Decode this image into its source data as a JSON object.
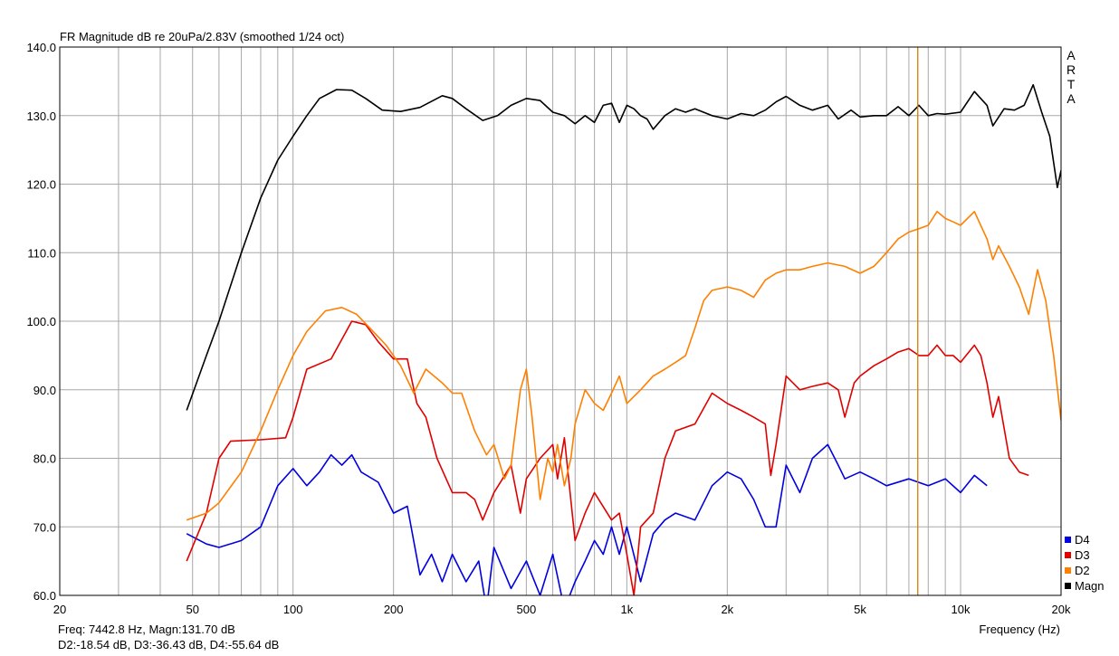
{
  "chart_data": {
    "type": "line",
    "title": "FR Magnitude dB re 20uPa/2.83V (smoothed 1/24 oct)",
    "xlabel": "Frequency (Hz)",
    "ylabel": "",
    "x_scale": "log",
    "xlim": [
      20,
      20000
    ],
    "ylim": [
      60,
      140
    ],
    "grid": true,
    "legend_position": "bottom-right",
    "x_tick_labels": [
      {
        "value": 20,
        "label": "20"
      },
      {
        "value": 50,
        "label": "50"
      },
      {
        "value": 100,
        "label": "100"
      },
      {
        "value": 200,
        "label": "200"
      },
      {
        "value": 500,
        "label": "500"
      },
      {
        "value": 1000,
        "label": "1k"
      },
      {
        "value": 2000,
        "label": "2k"
      },
      {
        "value": 5000,
        "label": "5k"
      },
      {
        "value": 10000,
        "label": "10k"
      },
      {
        "value": 20000,
        "label": "20k"
      }
    ],
    "y_ticks": [
      60,
      70,
      80,
      90,
      100,
      110,
      120,
      130,
      140
    ],
    "y_tick_labels": [
      "60.0",
      "70.0",
      "80.0",
      "90.0",
      "100.0",
      "110.0",
      "120.0",
      "130.0",
      "140.0"
    ],
    "cursor_frequency": 7442.8,
    "side_label": [
      "A",
      "R",
      "T",
      "A"
    ],
    "series": [
      {
        "name": "Magn",
        "color": "#000000",
        "points": [
          [
            48,
            87
          ],
          [
            55,
            95
          ],
          [
            60,
            100
          ],
          [
            70,
            110
          ],
          [
            80,
            118
          ],
          [
            90,
            123.5
          ],
          [
            100,
            127
          ],
          [
            110,
            130
          ],
          [
            120,
            132.5
          ],
          [
            135,
            133.8
          ],
          [
            150,
            133.7
          ],
          [
            165,
            132.5
          ],
          [
            185,
            130.8
          ],
          [
            210,
            130.6
          ],
          [
            240,
            131.2
          ],
          [
            280,
            132.9
          ],
          [
            300,
            132.5
          ],
          [
            330,
            131
          ],
          [
            370,
            129.3
          ],
          [
            410,
            130
          ],
          [
            450,
            131.5
          ],
          [
            500,
            132.5
          ],
          [
            550,
            132.2
          ],
          [
            600,
            130.5
          ],
          [
            650,
            130
          ],
          [
            700,
            128.8
          ],
          [
            750,
            130
          ],
          [
            800,
            129
          ],
          [
            850,
            131.5
          ],
          [
            900,
            131.8
          ],
          [
            950,
            129
          ],
          [
            1000,
            131.5
          ],
          [
            1050,
            131
          ],
          [
            1100,
            130
          ],
          [
            1150,
            129.5
          ],
          [
            1200,
            128
          ],
          [
            1300,
            130
          ],
          [
            1400,
            131
          ],
          [
            1500,
            130.5
          ],
          [
            1600,
            131
          ],
          [
            1800,
            130
          ],
          [
            2000,
            129.5
          ],
          [
            2200,
            130.3
          ],
          [
            2400,
            130
          ],
          [
            2600,
            130.8
          ],
          [
            2800,
            132
          ],
          [
            3000,
            132.8
          ],
          [
            3300,
            131.5
          ],
          [
            3600,
            130.8
          ],
          [
            4000,
            131.5
          ],
          [
            4300,
            129.5
          ],
          [
            4700,
            130.8
          ],
          [
            5000,
            129.8
          ],
          [
            5500,
            130
          ],
          [
            6000,
            130
          ],
          [
            6500,
            131.3
          ],
          [
            7000,
            130
          ],
          [
            7500,
            131.5
          ],
          [
            8000,
            130
          ],
          [
            8500,
            130.3
          ],
          [
            9000,
            130.2
          ],
          [
            10000,
            130.5
          ],
          [
            11000,
            133.5
          ],
          [
            12000,
            131.5
          ],
          [
            12500,
            128.5
          ],
          [
            13500,
            131
          ],
          [
            14500,
            130.8
          ],
          [
            15500,
            131.5
          ],
          [
            16500,
            134.5
          ],
          [
            17500,
            130.5
          ],
          [
            18500,
            127
          ],
          [
            19500,
            119.5
          ],
          [
            20000,
            122
          ]
        ]
      },
      {
        "name": "D2",
        "color": "#ff8000",
        "points": [
          [
            48,
            71
          ],
          [
            55,
            72
          ],
          [
            60,
            73.5
          ],
          [
            70,
            78
          ],
          [
            80,
            84
          ],
          [
            90,
            90
          ],
          [
            100,
            95
          ],
          [
            110,
            98.5
          ],
          [
            125,
            101.5
          ],
          [
            140,
            102
          ],
          [
            155,
            101
          ],
          [
            170,
            99
          ],
          [
            190,
            96.5
          ],
          [
            210,
            93.5
          ],
          [
            230,
            89.5
          ],
          [
            250,
            93
          ],
          [
            280,
            91
          ],
          [
            300,
            89.5
          ],
          [
            320,
            89.5
          ],
          [
            350,
            84
          ],
          [
            380,
            80.5
          ],
          [
            400,
            82
          ],
          [
            430,
            77
          ],
          [
            450,
            79
          ],
          [
            480,
            90
          ],
          [
            500,
            93
          ],
          [
            520,
            86
          ],
          [
            550,
            74
          ],
          [
            580,
            80
          ],
          [
            600,
            78
          ],
          [
            620,
            82
          ],
          [
            650,
            76
          ],
          [
            680,
            80
          ],
          [
            700,
            85
          ],
          [
            750,
            90
          ],
          [
            800,
            88
          ],
          [
            850,
            87
          ],
          [
            900,
            89.5
          ],
          [
            950,
            92
          ],
          [
            1000,
            88
          ],
          [
            1100,
            90
          ],
          [
            1200,
            92
          ],
          [
            1300,
            93
          ],
          [
            1400,
            94
          ],
          [
            1500,
            95
          ],
          [
            1600,
            99
          ],
          [
            1700,
            103
          ],
          [
            1800,
            104.5
          ],
          [
            2000,
            105
          ],
          [
            2200,
            104.5
          ],
          [
            2400,
            103.5
          ],
          [
            2600,
            106
          ],
          [
            2800,
            107
          ],
          [
            3000,
            107.5
          ],
          [
            3300,
            107.5
          ],
          [
            3600,
            108
          ],
          [
            4000,
            108.5
          ],
          [
            4500,
            108
          ],
          [
            5000,
            107
          ],
          [
            5500,
            108
          ],
          [
            6000,
            110
          ],
          [
            6500,
            112
          ],
          [
            7000,
            113
          ],
          [
            7500,
            113.5
          ],
          [
            8000,
            114
          ],
          [
            8500,
            116
          ],
          [
            9000,
            115
          ],
          [
            9500,
            114.5
          ],
          [
            10000,
            114
          ],
          [
            11000,
            116
          ],
          [
            12000,
            112
          ],
          [
            12500,
            109
          ],
          [
            13000,
            111
          ],
          [
            14000,
            108
          ],
          [
            15000,
            105
          ],
          [
            16000,
            101
          ],
          [
            17000,
            107.5
          ],
          [
            18000,
            103
          ],
          [
            19000,
            95
          ],
          [
            20000,
            85.5
          ]
        ]
      },
      {
        "name": "D3",
        "color": "#e00000",
        "points": [
          [
            48,
            65
          ],
          [
            55,
            72
          ],
          [
            60,
            80
          ],
          [
            65,
            82.5
          ],
          [
            80,
            82.7
          ],
          [
            95,
            83
          ],
          [
            100,
            86
          ],
          [
            110,
            93
          ],
          [
            130,
            94.5
          ],
          [
            150,
            100
          ],
          [
            165,
            99.5
          ],
          [
            180,
            97
          ],
          [
            200,
            94.5
          ],
          [
            220,
            94.5
          ],
          [
            235,
            88
          ],
          [
            250,
            86
          ],
          [
            270,
            80
          ],
          [
            300,
            75
          ],
          [
            330,
            75
          ],
          [
            350,
            74
          ],
          [
            370,
            71
          ],
          [
            400,
            75
          ],
          [
            450,
            79
          ],
          [
            480,
            72
          ],
          [
            500,
            77
          ],
          [
            550,
            80
          ],
          [
            600,
            82
          ],
          [
            620,
            77
          ],
          [
            650,
            83
          ],
          [
            700,
            68
          ],
          [
            750,
            72
          ],
          [
            800,
            75
          ],
          [
            900,
            71
          ],
          [
            950,
            72
          ],
          [
            1000,
            66
          ],
          [
            1050,
            60
          ],
          [
            1100,
            70
          ],
          [
            1200,
            72
          ],
          [
            1300,
            80
          ],
          [
            1400,
            84
          ],
          [
            1600,
            85
          ],
          [
            1800,
            89.5
          ],
          [
            2000,
            88
          ],
          [
            2200,
            87
          ],
          [
            2400,
            86
          ],
          [
            2600,
            85
          ],
          [
            2700,
            77.5
          ],
          [
            2800,
            82
          ],
          [
            3000,
            92
          ],
          [
            3300,
            90
          ],
          [
            3600,
            90.5
          ],
          [
            4000,
            91
          ],
          [
            4300,
            90
          ],
          [
            4500,
            86
          ],
          [
            4800,
            91
          ],
          [
            5000,
            92
          ],
          [
            5500,
            93.5
          ],
          [
            6000,
            94.5
          ],
          [
            6500,
            95.5
          ],
          [
            7000,
            96
          ],
          [
            7500,
            95
          ],
          [
            8000,
            95
          ],
          [
            8500,
            96.5
          ],
          [
            9000,
            95
          ],
          [
            9500,
            95
          ],
          [
            10000,
            94
          ],
          [
            11000,
            96.5
          ],
          [
            11500,
            95
          ],
          [
            12000,
            91
          ],
          [
            12500,
            86
          ],
          [
            13000,
            89
          ],
          [
            14000,
            80
          ],
          [
            15000,
            78
          ],
          [
            16000,
            77.5
          ]
        ]
      },
      {
        "name": "D4",
        "color": "#0000e0",
        "points": [
          [
            48,
            69
          ],
          [
            55,
            67.5
          ],
          [
            60,
            67
          ],
          [
            70,
            68
          ],
          [
            80,
            70
          ],
          [
            90,
            76
          ],
          [
            100,
            78.5
          ],
          [
            110,
            76
          ],
          [
            120,
            78
          ],
          [
            130,
            80.5
          ],
          [
            140,
            79
          ],
          [
            150,
            80.5
          ],
          [
            160,
            78
          ],
          [
            180,
            76.5
          ],
          [
            200,
            72
          ],
          [
            220,
            73
          ],
          [
            240,
            63
          ],
          [
            260,
            66
          ],
          [
            280,
            62
          ],
          [
            300,
            66
          ],
          [
            330,
            62
          ],
          [
            360,
            65
          ],
          [
            380,
            58
          ],
          [
            400,
            67
          ],
          [
            450,
            61
          ],
          [
            500,
            65
          ],
          [
            550,
            60
          ],
          [
            600,
            66
          ],
          [
            650,
            58
          ],
          [
            700,
            62
          ],
          [
            750,
            65
          ],
          [
            800,
            68
          ],
          [
            850,
            66
          ],
          [
            900,
            70
          ],
          [
            950,
            66
          ],
          [
            1000,
            70
          ],
          [
            1100,
            62
          ],
          [
            1200,
            69
          ],
          [
            1300,
            71
          ],
          [
            1400,
            72
          ],
          [
            1600,
            71
          ],
          [
            1800,
            76
          ],
          [
            2000,
            78
          ],
          [
            2200,
            77
          ],
          [
            2400,
            74
          ],
          [
            2600,
            70
          ],
          [
            2800,
            70
          ],
          [
            3000,
            79
          ],
          [
            3300,
            75
          ],
          [
            3600,
            80
          ],
          [
            4000,
            82
          ],
          [
            4300,
            79
          ],
          [
            4500,
            77
          ],
          [
            5000,
            78
          ],
          [
            5500,
            77
          ],
          [
            6000,
            76
          ],
          [
            7000,
            77
          ],
          [
            8000,
            76
          ],
          [
            9000,
            77
          ],
          [
            10000,
            75
          ],
          [
            11000,
            77.5
          ],
          [
            12000,
            76
          ]
        ]
      }
    ]
  },
  "readout": {
    "line1": "Freq: 7442.8 Hz, Magn:131.70 dB",
    "line2": "D2:-18.54 dB, D3:-36.43 dB, D4:-55.64 dB"
  }
}
